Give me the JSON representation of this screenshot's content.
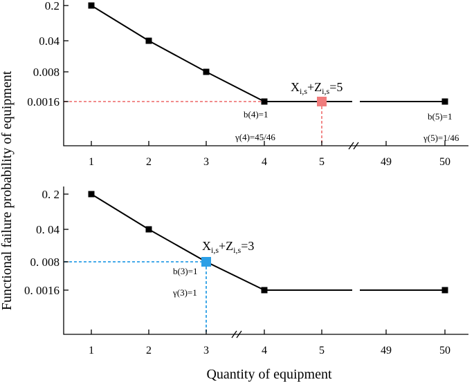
{
  "ylabel": "Functional failure probability of equipment",
  "xlabel": "Quantity of equipment",
  "chart_data": [
    {
      "type": "line",
      "x_categories": [
        "1",
        "2",
        "3",
        "4",
        "5",
        "49",
        "50"
      ],
      "y_ticks": [
        "0.2",
        "0.04",
        "0.008",
        "0.0016"
      ],
      "y_scale": "log",
      "axis_break": "between 5 and 49",
      "series": [
        {
          "x": [
            "1",
            "2",
            "3",
            "4",
            "5",
            "50"
          ],
          "y": [
            0.2,
            0.04,
            0.008,
            0.0016,
            0.0016,
            0.0016
          ]
        }
      ],
      "highlight": {
        "x": "5",
        "y": 0.0016,
        "color": "#f07c7c",
        "label_main_1": "X",
        "label_sub_1": "i,s",
        "label_plus": "+Z",
        "label_sub_2": "i,s",
        "label_eq": "=5"
      },
      "annotations": [
        "b(4)=1",
        "γ(4)=45/46",
        "b(5)=1",
        "γ(5)=1/46"
      ]
    },
    {
      "type": "line",
      "x_categories": [
        "1",
        "2",
        "3",
        "4",
        "5",
        "49",
        "50"
      ],
      "y_ticks": [
        "0. 2",
        "0. 04",
        "0. 008",
        "0. 0016"
      ],
      "y_scale": "log",
      "axis_break": "between 5 and 49",
      "series": [
        {
          "x": [
            "1",
            "2",
            "3",
            "4",
            "50"
          ],
          "y": [
            0.2,
            0.04,
            0.008,
            0.0016,
            0.0016
          ]
        }
      ],
      "highlight": {
        "x": "3",
        "y": 0.008,
        "color": "#2b9fe6",
        "label_main_1": "X",
        "label_sub_1": "i,s",
        "label_plus": "+Z",
        "label_sub_2": "i,s",
        "label_eq": "=3"
      },
      "annotations": [
        "b(3)=1",
        "γ(3)=1"
      ]
    }
  ]
}
